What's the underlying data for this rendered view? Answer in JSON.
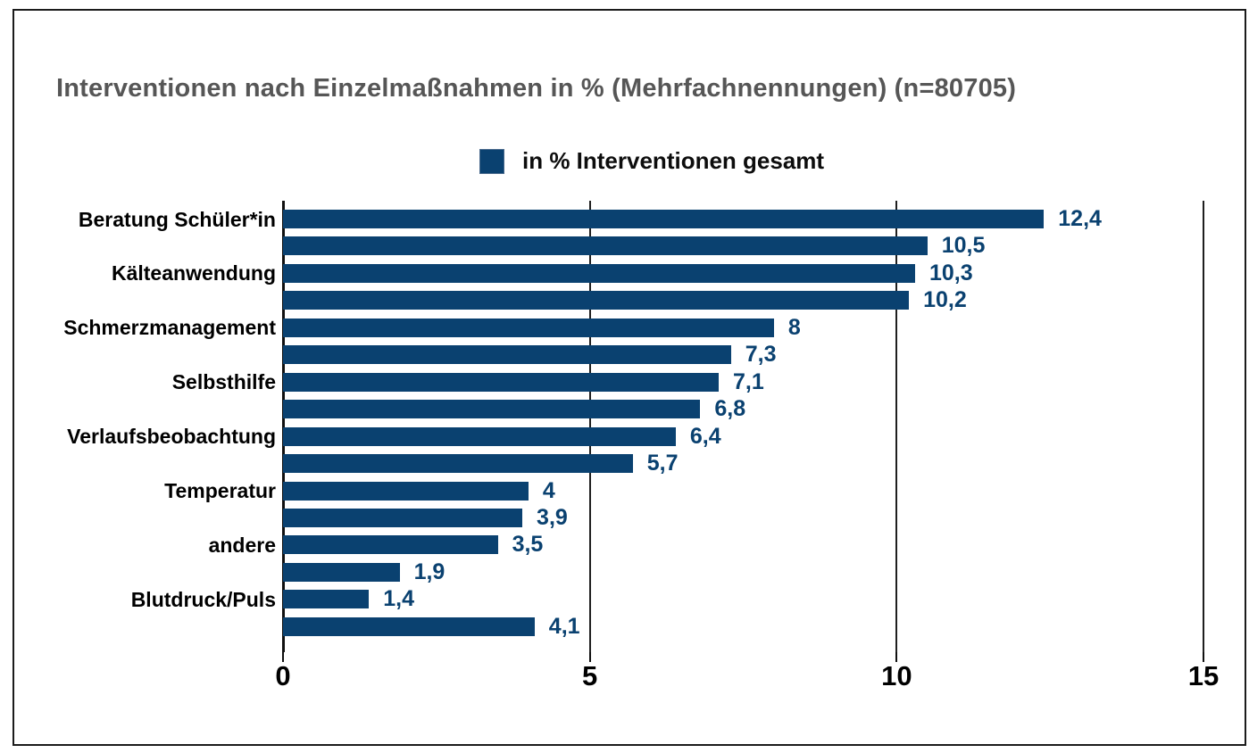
{
  "chart_data": {
    "type": "bar",
    "orientation": "horizontal",
    "title": "Interventionen nach Einzelmaßnahmen in % (Mehrfachnennungen) (n=80705)",
    "legend": {
      "label": "in % Interventionen gesamt",
      "position": "top-center"
    },
    "categories": [
      "Beratung Schüler*in",
      "",
      "Kälteanwendung",
      "",
      "Schmerzmanagement",
      "",
      "Selbsthilfe",
      "",
      "Verlaufsbeobachtung",
      "",
      "Temperatur",
      "",
      "andere",
      "",
      "Blutdruck/Puls",
      ""
    ],
    "values": [
      12.4,
      10.5,
      10.3,
      10.2,
      8,
      7.3,
      7.1,
      6.8,
      6.4,
      5.7,
      4,
      3.9,
      3.5,
      1.9,
      1.4,
      4.1
    ],
    "value_labels": [
      "12,4",
      "10,5",
      "10,3",
      "10,2",
      "8",
      "7,3",
      "7,1",
      "6,8",
      "6,4",
      "5,7",
      "4",
      "3,9",
      "3,5",
      "1,9",
      "1,4",
      "4,1"
    ],
    "xlim": [
      0,
      15
    ],
    "x_ticks": [
      0,
      5,
      10,
      15
    ],
    "x_tick_labels": [
      "0",
      "5",
      "10",
      "15"
    ],
    "grid": "vertical-on",
    "colors": {
      "bar": "#0a4170",
      "value_label": "#0a4170",
      "title": "#565656",
      "axis_text": "#000000",
      "gridline": "#1f1f1f",
      "frame_border": "#1b1b1b",
      "background": "#ffffff"
    }
  }
}
